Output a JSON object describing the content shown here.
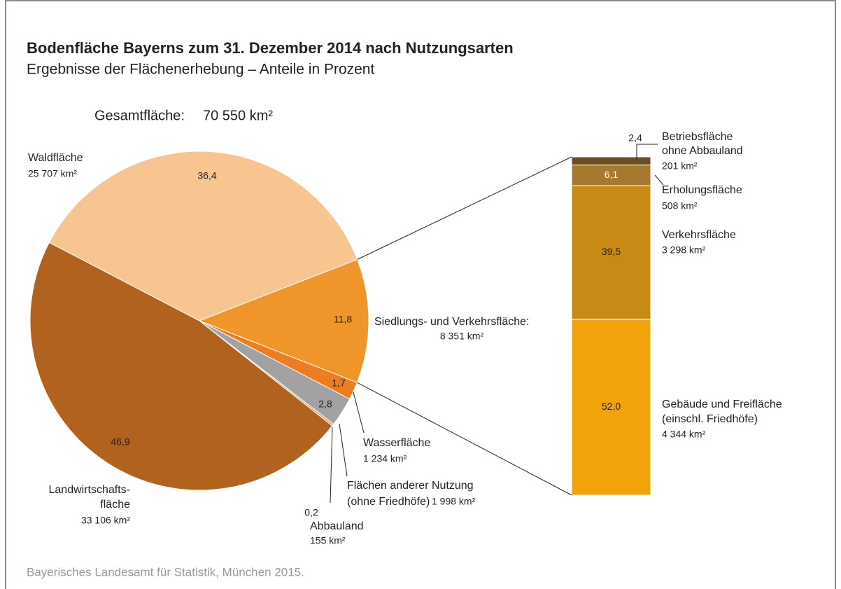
{
  "chart_data": {
    "type": "pie",
    "title": "Bodenfläche Bayerns zum 31. Dezember 2014 nach Nutzungsarten",
    "subtitle": "Ergebnisse der Flächenerhebung – Anteile in Prozent",
    "total_label": "Gesamtfläche:",
    "total": "70 550 km²",
    "source": "Bayerisches Landesamt für Statistik, München 2015.",
    "slices": [
      {
        "label": [
          "Waldfläche"
        ],
        "area": "25 707 km²",
        "value": 36.4,
        "value_label": "36,4",
        "color": "#f8c48f"
      },
      {
        "label": [
          "Siedlungs- und Verkehrsfläche:"
        ],
        "area": "8 351 km²",
        "value": 11.8,
        "value_label": "11,8",
        "color": "#f0952a"
      },
      {
        "label": [
          "Wasserfläche"
        ],
        "area": "1 234 km²",
        "value": 1.7,
        "value_label": "1,7",
        "color": "#ee7d22"
      },
      {
        "label": [
          "Flächen anderer Nutzung",
          "(ohne Friedhöfe)"
        ],
        "area": "1 998 km²",
        "value": 2.8,
        "value_label": "2,8",
        "color": "#a2a2a2"
      },
      {
        "label": [
          "Abbauland"
        ],
        "area": "155 km²",
        "value": 0.2,
        "value_label": "0,2",
        "color": "#e3a465"
      },
      {
        "label": [
          "Landwirtschafts-",
          "fläche"
        ],
        "area": "33 106 km²",
        "value": 46.9,
        "value_label": "46,9",
        "color": "#b1621e"
      }
    ],
    "breakdown": [
      {
        "label": [
          "Gebäude und Freifläche",
          "(einschl. Friedhöfe)"
        ],
        "area": "4 344 km²",
        "value": 52.0,
        "value_label": "52,0",
        "color": "#f4a40b"
      },
      {
        "label": [
          "Verkehrsfläche"
        ],
        "area": "3 298 km²",
        "value": 39.5,
        "value_label": "39,5",
        "color": "#c98a15"
      },
      {
        "label": [
          "Erholungsfläche"
        ],
        "area": "508 km²",
        "value": 6.1,
        "value_label": "6,1",
        "color": "#a7792e"
      },
      {
        "label": [
          "Betriebsfläche",
          "ohne Abbauland"
        ],
        "area": "201 km²",
        "value": 2.4,
        "value_label": "2,4",
        "color": "#6d4f25"
      }
    ]
  }
}
